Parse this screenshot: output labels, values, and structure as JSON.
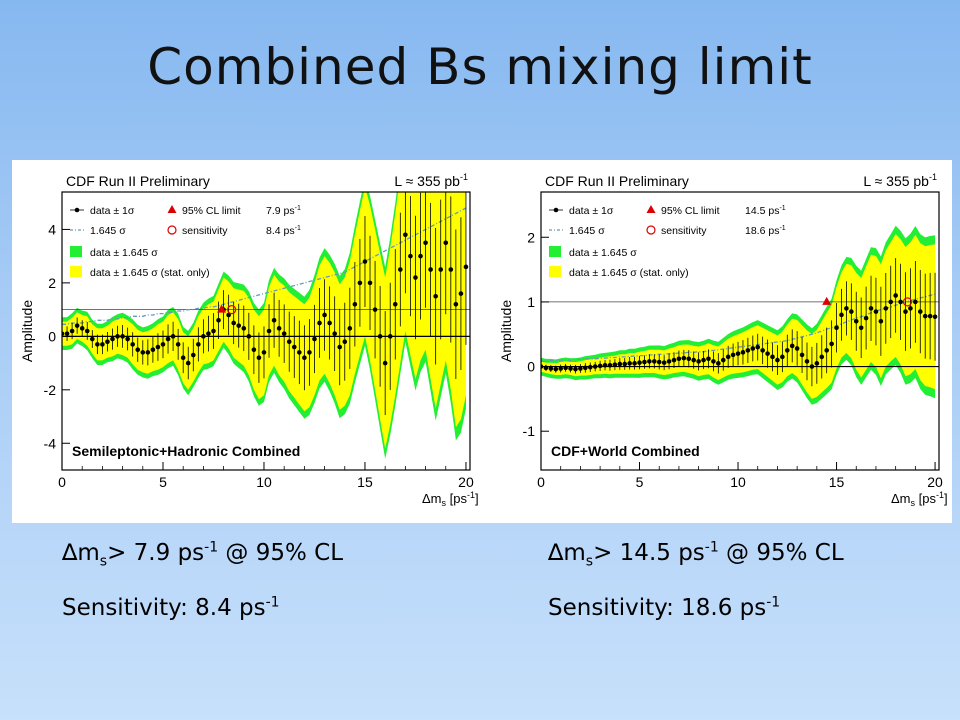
{
  "slide": {
    "title": "Combined Bs mixing limit"
  },
  "captions": {
    "left": {
      "line1_prefix": "∆m",
      "line1_sub": "s",
      "line1_mid": "> 7.9 ps",
      "line1_sup": "-1",
      "line1_suffix": " @ 95% CL",
      "line2_text": "Sensitivity: 8.4 ps",
      "line2_sup": "-1"
    },
    "right": {
      "line1_prefix": "∆m",
      "line1_sub": "s",
      "line1_mid": "> 14.5 ps",
      "line1_sup": "-1",
      "line1_suffix": " @ 95% CL",
      "line2_text": "Sensitivity: 18.6 ps",
      "line2_sup": "-1"
    }
  },
  "colors": {
    "band_outer": "#22ee33",
    "band_inner": "#ffff00",
    "points": "#000000",
    "limit_marker": "#dd0000",
    "sensitivity_curve": "#6699bb"
  },
  "chart_data": [
    {
      "type": "line",
      "header": "CDF Run II Preliminary",
      "lumi": "L ≈ 355 pb",
      "lumi_sup": "-1",
      "xlabel": "Δm",
      "xlabel_sub": "s",
      "xlabel_unit": " [ps",
      "xlabel_unit_sup": "-1",
      "xlabel_close": "]",
      "ylabel": "Amplitude",
      "xlim": [
        0,
        20.2
      ],
      "ylim": [
        -5,
        5.4
      ],
      "xticks": [
        0,
        5,
        10,
        15,
        20
      ],
      "yticks": [
        -4,
        -2,
        0,
        2,
        4
      ],
      "label_bottom": "Semileptonic+Hadronic Combined",
      "legend": {
        "data": "data ± 1σ",
        "limit_label": "95% CL limit",
        "limit_value": "7.9 ps",
        "limit_sup": "-1",
        "sens_curve": "1.645 σ",
        "sens_label": "sensitivity",
        "sens_value": "8.4 ps",
        "sens_sup": "-1",
        "band_green": "data ± 1.645 σ",
        "band_yellow": "data ± 1.645 σ (stat. only)"
      },
      "limit_x": 7.9,
      "sensitivity_x": 8.4,
      "x": [
        0,
        0.25,
        0.5,
        0.75,
        1,
        1.25,
        1.5,
        1.75,
        2,
        2.25,
        2.5,
        2.75,
        3,
        3.25,
        3.5,
        3.75,
        4,
        4.25,
        4.5,
        4.75,
        5,
        5.25,
        5.5,
        5.75,
        6,
        6.25,
        6.5,
        6.75,
        7,
        7.25,
        7.5,
        7.75,
        8,
        8.25,
        8.5,
        8.75,
        9,
        9.25,
        9.5,
        9.75,
        10,
        10.25,
        10.5,
        10.75,
        11,
        11.25,
        11.5,
        11.75,
        12,
        12.25,
        12.5,
        12.75,
        13,
        13.25,
        13.5,
        13.75,
        14,
        14.25,
        14.5,
        14.75,
        15,
        15.25,
        15.5,
        15.75,
        16,
        16.25,
        16.5,
        16.75,
        17,
        17.25,
        17.5,
        17.75,
        18,
        18.25,
        18.5,
        18.75,
        19,
        19.25,
        19.5,
        19.75,
        20
      ],
      "y": [
        0.1,
        0.1,
        0.2,
        0.4,
        0.3,
        0.2,
        -0.1,
        -0.3,
        -0.3,
        -0.2,
        -0.1,
        0.0,
        0.0,
        -0.1,
        -0.3,
        -0.5,
        -0.6,
        -0.6,
        -0.5,
        -0.4,
        -0.3,
        -0.1,
        0.0,
        -0.3,
        -0.8,
        -1.0,
        -0.7,
        -0.3,
        0.0,
        0.1,
        0.2,
        0.6,
        1.0,
        0.8,
        0.5,
        0.4,
        0.3,
        0.0,
        -0.5,
        -0.8,
        -0.6,
        0.2,
        0.6,
        0.3,
        0.1,
        -0.2,
        -0.4,
        -0.6,
        -0.8,
        -0.6,
        -0.1,
        0.5,
        0.8,
        0.5,
        0.1,
        -0.4,
        -0.2,
        0.3,
        1.2,
        2.0,
        2.8,
        2.0,
        1.0,
        0.0,
        -1.0,
        0.0,
        1.2,
        2.5,
        3.8,
        3.0,
        2.2,
        3.0,
        3.5,
        2.5,
        1.5,
        2.5,
        3.5,
        2.5,
        1.2,
        1.6,
        2.6
      ],
      "sensitivity_curve_y": [
        0.45,
        0.45,
        0.5,
        0.5,
        0.5,
        0.55,
        0.55,
        0.6,
        0.6,
        0.6,
        0.65,
        0.65,
        0.7,
        0.7,
        0.75,
        0.75,
        0.75,
        0.8,
        0.8,
        0.85,
        0.85,
        0.9,
        0.9,
        0.95,
        0.95,
        1.0,
        1.0,
        1.05,
        1.05,
        1.1,
        1.1,
        1.15,
        1.2,
        1.25,
        1.3,
        1.35,
        1.4,
        1.45,
        1.5,
        1.55,
        1.6,
        1.65,
        1.7,
        1.75,
        1.8,
        1.85,
        1.9,
        1.95,
        2.0,
        2.05,
        2.1,
        2.15,
        2.2,
        2.25,
        2.3,
        2.35,
        2.4,
        2.5,
        2.6,
        2.7,
        2.8,
        2.9,
        3.0,
        3.1,
        3.2,
        3.3,
        3.4,
        3.5,
        3.6,
        3.7,
        3.8,
        3.9,
        4.0,
        4.1,
        4.2,
        4.3,
        4.4,
        4.5,
        4.6,
        4.7,
        4.8
      ]
    },
    {
      "type": "line",
      "header": "CDF Run II Preliminary",
      "lumi": "L ≈ 355 pb",
      "lumi_sup": "-1",
      "xlabel": "Δm",
      "xlabel_sub": "s",
      "xlabel_unit": " [ps",
      "xlabel_unit_sup": "-1",
      "xlabel_close": "]",
      "ylabel": "Amplitude",
      "xlim": [
        0,
        20.2
      ],
      "ylim": [
        -1.6,
        2.7
      ],
      "xticks": [
        0,
        5,
        10,
        15,
        20
      ],
      "yticks": [
        -1,
        0,
        1,
        2
      ],
      "label_bottom": "CDF+World Combined",
      "legend": {
        "data": "data ± 1σ",
        "limit_label": "95% CL limit",
        "limit_value": "14.5 ps",
        "limit_sup": "-1",
        "sens_curve": "1.645 σ",
        "sens_label": "sensitivity",
        "sens_value": "18.6 ps",
        "sens_sup": "-1",
        "band_green": "data ± 1.645 σ",
        "band_yellow": "data ± 1.645 σ (stat. only)"
      },
      "limit_x": 14.5,
      "sensitivity_x": 18.6,
      "x": [
        0,
        0.25,
        0.5,
        0.75,
        1,
        1.25,
        1.5,
        1.75,
        2,
        2.25,
        2.5,
        2.75,
        3,
        3.25,
        3.5,
        3.75,
        4,
        4.25,
        4.5,
        4.75,
        5,
        5.25,
        5.5,
        5.75,
        6,
        6.25,
        6.5,
        6.75,
        7,
        7.25,
        7.5,
        7.75,
        8,
        8.25,
        8.5,
        8.75,
        9,
        9.25,
        9.5,
        9.75,
        10,
        10.25,
        10.5,
        10.75,
        11,
        11.25,
        11.5,
        11.75,
        12,
        12.25,
        12.5,
        12.75,
        13,
        13.25,
        13.5,
        13.75,
        14,
        14.25,
        14.5,
        14.75,
        15,
        15.25,
        15.5,
        15.75,
        16,
        16.25,
        16.5,
        16.75,
        17,
        17.25,
        17.5,
        17.75,
        18,
        18.25,
        18.5,
        18.75,
        19,
        19.25,
        19.5,
        19.75,
        20
      ],
      "y": [
        0.0,
        -0.02,
        -0.03,
        -0.04,
        -0.03,
        -0.02,
        -0.03,
        -0.04,
        -0.03,
        -0.02,
        -0.01,
        0.0,
        0.01,
        0.02,
        0.02,
        0.03,
        0.04,
        0.04,
        0.05,
        0.05,
        0.06,
        0.07,
        0.08,
        0.08,
        0.07,
        0.06,
        0.08,
        0.1,
        0.12,
        0.13,
        0.12,
        0.1,
        0.08,
        0.1,
        0.12,
        0.08,
        0.05,
        0.1,
        0.15,
        0.18,
        0.2,
        0.22,
        0.25,
        0.28,
        0.3,
        0.25,
        0.2,
        0.15,
        0.1,
        0.15,
        0.25,
        0.32,
        0.28,
        0.18,
        0.08,
        0.0,
        0.05,
        0.15,
        0.25,
        0.35,
        0.6,
        0.8,
        0.9,
        0.85,
        0.7,
        0.6,
        0.75,
        0.9,
        0.85,
        0.7,
        0.9,
        1.0,
        1.1,
        1.0,
        0.85,
        0.9,
        1.0,
        0.85,
        0.78,
        0.78,
        0.77
      ],
      "sensitivity_curve_y": [
        0.08,
        0.08,
        0.09,
        0.09,
        0.1,
        0.1,
        0.1,
        0.11,
        0.11,
        0.12,
        0.12,
        0.12,
        0.13,
        0.13,
        0.14,
        0.14,
        0.15,
        0.15,
        0.16,
        0.16,
        0.17,
        0.17,
        0.18,
        0.18,
        0.19,
        0.19,
        0.2,
        0.2,
        0.21,
        0.21,
        0.22,
        0.22,
        0.23,
        0.23,
        0.24,
        0.25,
        0.26,
        0.27,
        0.28,
        0.29,
        0.3,
        0.31,
        0.32,
        0.33,
        0.34,
        0.35,
        0.36,
        0.37,
        0.38,
        0.39,
        0.4,
        0.42,
        0.44,
        0.46,
        0.48,
        0.5,
        0.52,
        0.55,
        0.58,
        0.6,
        0.63,
        0.66,
        0.69,
        0.72,
        0.75,
        0.77,
        0.8,
        0.83,
        0.86,
        0.88,
        0.9,
        0.92,
        0.95,
        0.97,
        1.0,
        1.02,
        1.04,
        1.06,
        1.08,
        1.1,
        1.12
      ]
    }
  ]
}
